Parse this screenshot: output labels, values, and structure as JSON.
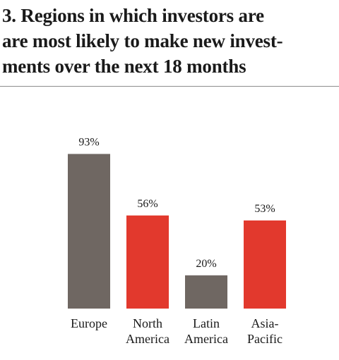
{
  "chart_data": {
    "type": "bar",
    "title": "3. Regions in which investors are\nare most likely to make new invest-\nments over the next 18 months",
    "xlabel": "",
    "ylabel": "",
    "ylim": [
      0,
      100
    ],
    "grid": false,
    "legend": "none",
    "categories": [
      [
        "Europe"
      ],
      [
        "North",
        "America"
      ],
      [
        "Latin",
        "America"
      ],
      [
        "Asia-",
        "Pacific"
      ]
    ],
    "values": [
      93,
      56,
      20,
      53
    ],
    "value_labels": [
      "93%",
      "56%",
      "20%",
      "53%"
    ],
    "colors": [
      "#6f6762",
      "#e2392d",
      "#6f6762",
      "#e2392d"
    ]
  }
}
